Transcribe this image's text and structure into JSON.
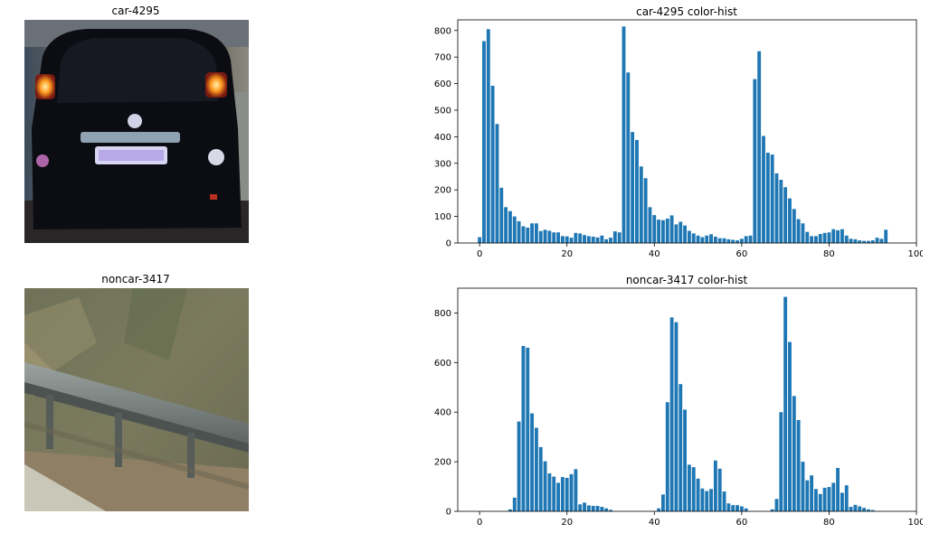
{
  "images": [
    {
      "title": "car-4295"
    },
    {
      "title": "noncar-3417"
    }
  ],
  "colors": {
    "bar": "#1f77b4"
  },
  "chart_data": [
    {
      "type": "bar",
      "title": "car-4295 color-hist",
      "xlim": [
        -5,
        100
      ],
      "ylim": [
        0,
        840
      ],
      "xticks": [
        0,
        20,
        40,
        60,
        80,
        100
      ],
      "yticks": [
        0,
        100,
        200,
        300,
        400,
        500,
        600,
        700,
        800
      ],
      "x": [
        0,
        1,
        2,
        3,
        4,
        5,
        6,
        7,
        8,
        9,
        10,
        11,
        12,
        13,
        14,
        15,
        16,
        17,
        18,
        19,
        20,
        21,
        22,
        23,
        24,
        25,
        26,
        27,
        28,
        29,
        30,
        31,
        32,
        33,
        34,
        35,
        36,
        37,
        38,
        39,
        40,
        41,
        42,
        43,
        44,
        45,
        46,
        47,
        48,
        49,
        50,
        51,
        52,
        53,
        54,
        55,
        56,
        57,
        58,
        59,
        60,
        61,
        62,
        63,
        64,
        65,
        66,
        67,
        68,
        69,
        70,
        71,
        72,
        73,
        74,
        75,
        76,
        77,
        78,
        79,
        80,
        81,
        82,
        83,
        84,
        85,
        86,
        87,
        88,
        89,
        90,
        91,
        92,
        93,
        94,
        95
      ],
      "values": [
        22,
        760,
        805,
        592,
        448,
        208,
        135,
        120,
        100,
        82,
        63,
        58,
        74,
        74,
        45,
        50,
        46,
        40,
        40,
        26,
        25,
        20,
        38,
        36,
        30,
        26,
        24,
        21,
        28,
        14,
        20,
        44,
        40,
        815,
        642,
        418,
        388,
        288,
        244,
        135,
        105,
        88,
        86,
        92,
        104,
        70,
        80,
        66,
        46,
        36,
        28,
        22,
        28,
        33,
        24,
        18,
        18,
        14,
        12,
        10,
        16,
        26,
        28,
        617,
        722,
        403,
        340,
        333,
        262,
        238,
        210,
        168,
        128,
        90,
        74,
        42,
        26,
        26,
        34,
        38,
        40,
        52,
        48,
        52,
        28,
        16,
        14,
        10,
        8,
        8,
        10,
        20,
        16,
        50,
        0,
        0
      ]
    },
    {
      "type": "bar",
      "title": "noncar-3417 color-hist",
      "xlim": [
        -5,
        100
      ],
      "ylim": [
        0,
        900
      ],
      "xticks": [
        0,
        20,
        40,
        60,
        80,
        100
      ],
      "yticks": [
        0,
        200,
        400,
        600,
        800
      ],
      "x": [
        0,
        1,
        2,
        3,
        4,
        5,
        6,
        7,
        8,
        9,
        10,
        11,
        12,
        13,
        14,
        15,
        16,
        17,
        18,
        19,
        20,
        21,
        22,
        23,
        24,
        25,
        26,
        27,
        28,
        29,
        30,
        31,
        32,
        33,
        34,
        35,
        36,
        37,
        38,
        39,
        40,
        41,
        42,
        43,
        44,
        45,
        46,
        47,
        48,
        49,
        50,
        51,
        52,
        53,
        54,
        55,
        56,
        57,
        58,
        59,
        60,
        61,
        62,
        63,
        64,
        65,
        66,
        67,
        68,
        69,
        70,
        71,
        72,
        73,
        74,
        75,
        76,
        77,
        78,
        79,
        80,
        81,
        82,
        83,
        84,
        85,
        86,
        87,
        88,
        89,
        90,
        91,
        92,
        93,
        94,
        95
      ],
      "values": [
        0,
        0,
        0,
        0,
        0,
        0,
        0,
        8,
        55,
        362,
        667,
        660,
        395,
        337,
        259,
        202,
        153,
        140,
        115,
        138,
        135,
        150,
        170,
        28,
        35,
        24,
        22,
        22,
        18,
        12,
        6,
        0,
        0,
        0,
        0,
        0,
        0,
        0,
        0,
        0,
        0,
        12,
        68,
        440,
        782,
        763,
        513,
        410,
        188,
        178,
        132,
        92,
        82,
        90,
        205,
        172,
        80,
        32,
        25,
        25,
        20,
        12,
        0,
        0,
        0,
        0,
        0,
        8,
        50,
        400,
        865,
        683,
        465,
        368,
        200,
        125,
        145,
        90,
        70,
        95,
        98,
        115,
        175,
        75,
        105,
        18,
        26,
        20,
        14,
        8,
        5,
        0,
        0,
        0,
        0,
        0
      ]
    }
  ]
}
